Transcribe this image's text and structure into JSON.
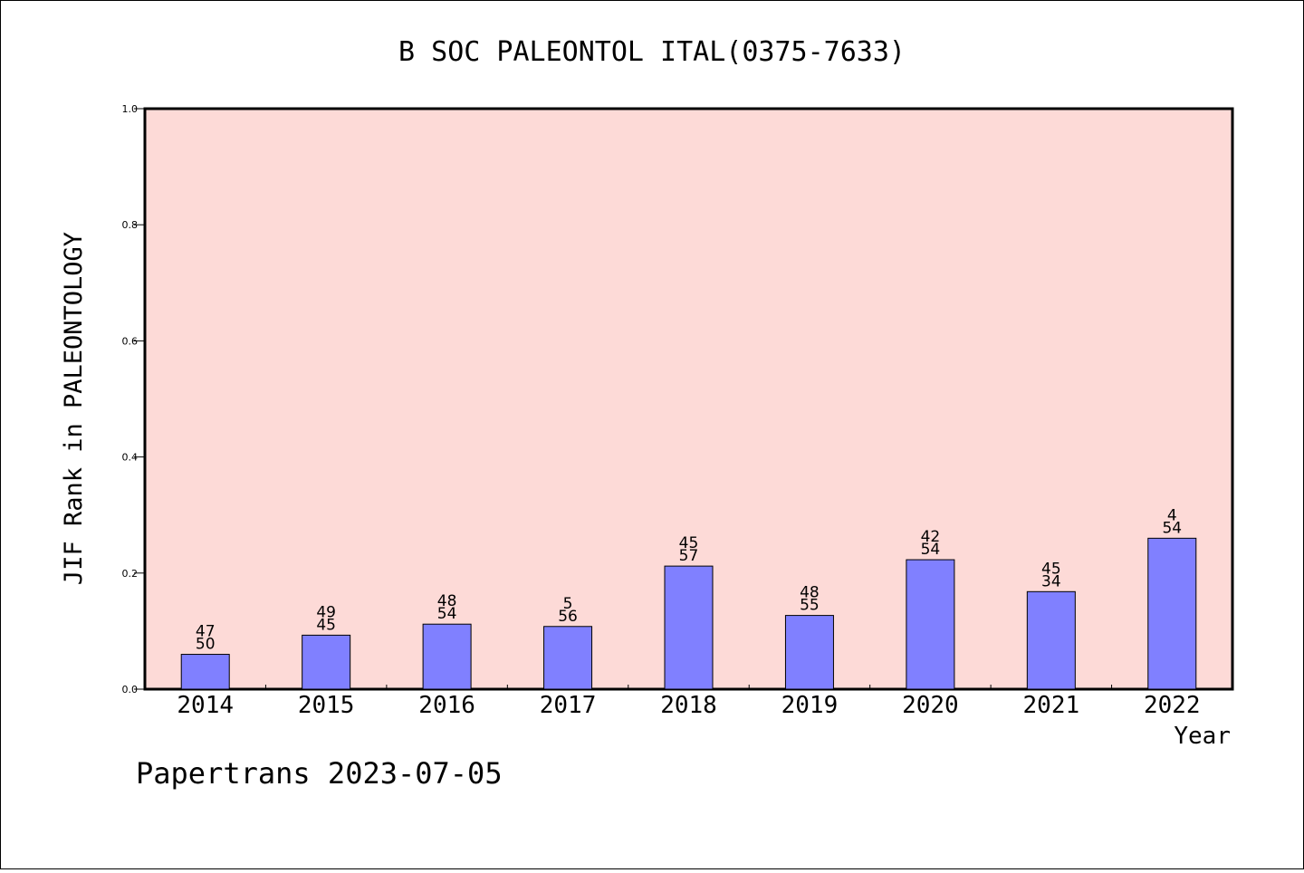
{
  "chart_data": {
    "type": "bar",
    "title": "B SOC PALEONTOL ITAL(0375-7633)",
    "xlabel": "Year",
    "ylabel": "JIF Rank in PALEONTOLOGY",
    "ylim": [
      0.0,
      1.0
    ],
    "yticks": [
      "0.0",
      "0.2",
      "0.4",
      "0.6",
      "0.8",
      "1.0"
    ],
    "categories": [
      "2014",
      "2015",
      "2016",
      "2017",
      "2018",
      "2019",
      "2020",
      "2021",
      "2022"
    ],
    "values": [
      0.06,
      0.093,
      0.112,
      0.108,
      0.212,
      0.127,
      0.223,
      0.168,
      0.26
    ],
    "bar_labels": [
      [
        "47",
        "50"
      ],
      [
        "49",
        "45"
      ],
      [
        "48",
        "54"
      ],
      [
        "5",
        "56"
      ],
      [
        "45",
        "57"
      ],
      [
        "48",
        "55"
      ],
      [
        "42",
        "54"
      ],
      [
        "45",
        "34"
      ],
      [
        "4",
        "54"
      ]
    ],
    "grid": false,
    "legend": "none",
    "colors": {
      "plot_background": "#fddad7",
      "bar_fill": "#8080ff",
      "bar_stroke": "#000000"
    }
  },
  "footer": "Papertrans 2023-07-05"
}
